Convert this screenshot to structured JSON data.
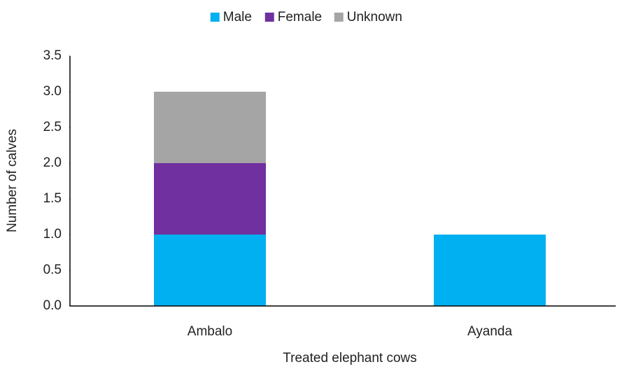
{
  "chart_data": {
    "type": "bar",
    "stacked": true,
    "x_label": "Treated elephant cows",
    "y_label": "Number of calves",
    "categories": [
      "Ambalo",
      "Ayanda"
    ],
    "series": [
      {
        "name": "Male",
        "color": "#00b0f0",
        "values": [
          1,
          1
        ]
      },
      {
        "name": "Female",
        "color": "#7030a0",
        "values": [
          1,
          0
        ]
      },
      {
        "name": "Unknown",
        "color": "#a5a5a5",
        "values": [
          1,
          0
        ]
      }
    ],
    "ylim": [
      0,
      3.5
    ],
    "yticks": [
      {
        "value": 0,
        "label": "0.0"
      },
      0.5,
      {
        "value": 1,
        "label": "1.0"
      },
      1.5,
      {
        "value": 2,
        "label": "2.0"
      },
      2.5,
      {
        "value": 3,
        "label": "3.0"
      },
      3.5
    ],
    "grid": false,
    "legend": "top"
  }
}
